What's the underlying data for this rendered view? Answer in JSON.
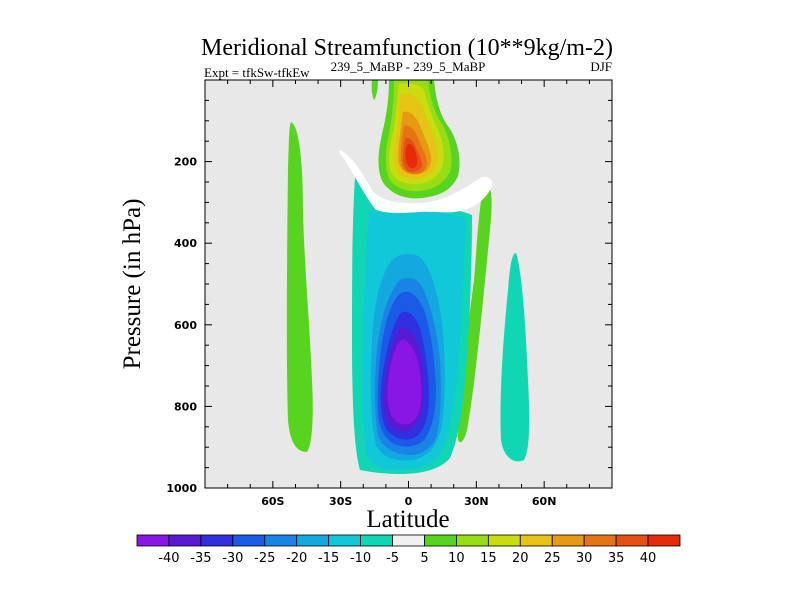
{
  "chart_data": {
    "type": "contour",
    "title": "Meridional Streamfunction (10**9kg/m-2)",
    "left_string": "Expt = tfkSw-tfkEw",
    "center_string": "239_5_MaBP - 239_5_MaBP",
    "right_string": "DJF",
    "xlabel": "Latitude",
    "ylabel": "Pressure (in hPa)",
    "xlim": [
      -90,
      90
    ],
    "ylim": [
      1000,
      0
    ],
    "x_ticks": [
      {
        "value": -60,
        "label": "60S"
      },
      {
        "value": -30,
        "label": "30S"
      },
      {
        "value": 0,
        "label": "0"
      },
      {
        "value": 30,
        "label": "30N"
      },
      {
        "value": 60,
        "label": "60N"
      }
    ],
    "y_ticks": [
      {
        "value": 200,
        "label": "200"
      },
      {
        "value": 400,
        "label": "400"
      },
      {
        "value": 600,
        "label": "600"
      },
      {
        "value": 800,
        "label": "800"
      },
      {
        "value": 1000,
        "label": "1000"
      }
    ],
    "background_color": "#e8e8e8",
    "contour_levels": [
      -40,
      -35,
      -30,
      -25,
      -20,
      -15,
      -10,
      -5,
      5,
      10,
      15,
      20,
      25,
      30,
      35,
      40
    ],
    "colorbar_colors": [
      "#8a16e6",
      "#5a1ad4",
      "#3030e0",
      "#1a5ae6",
      "#1a84e6",
      "#14a8e0",
      "#10c8d8",
      "#10d6b4",
      "#f0f0f0",
      "#58d420",
      "#98dc14",
      "#c8dc10",
      "#e6c414",
      "#e69a14",
      "#e67414",
      "#e65014",
      "#e62a0a"
    ],
    "features": [
      {
        "name": "min-cell",
        "lat": -5,
        "p": 770,
        "value": -40
      },
      {
        "name": "max-cell",
        "lat": 5,
        "p": 175,
        "value": 40
      },
      {
        "name": "green-band-west",
        "lat": -45,
        "value": 5
      },
      {
        "name": "green-band-east",
        "lat": 25,
        "value": 5
      },
      {
        "name": "cyan-cell-east",
        "lat": 45,
        "value": -5
      }
    ]
  }
}
